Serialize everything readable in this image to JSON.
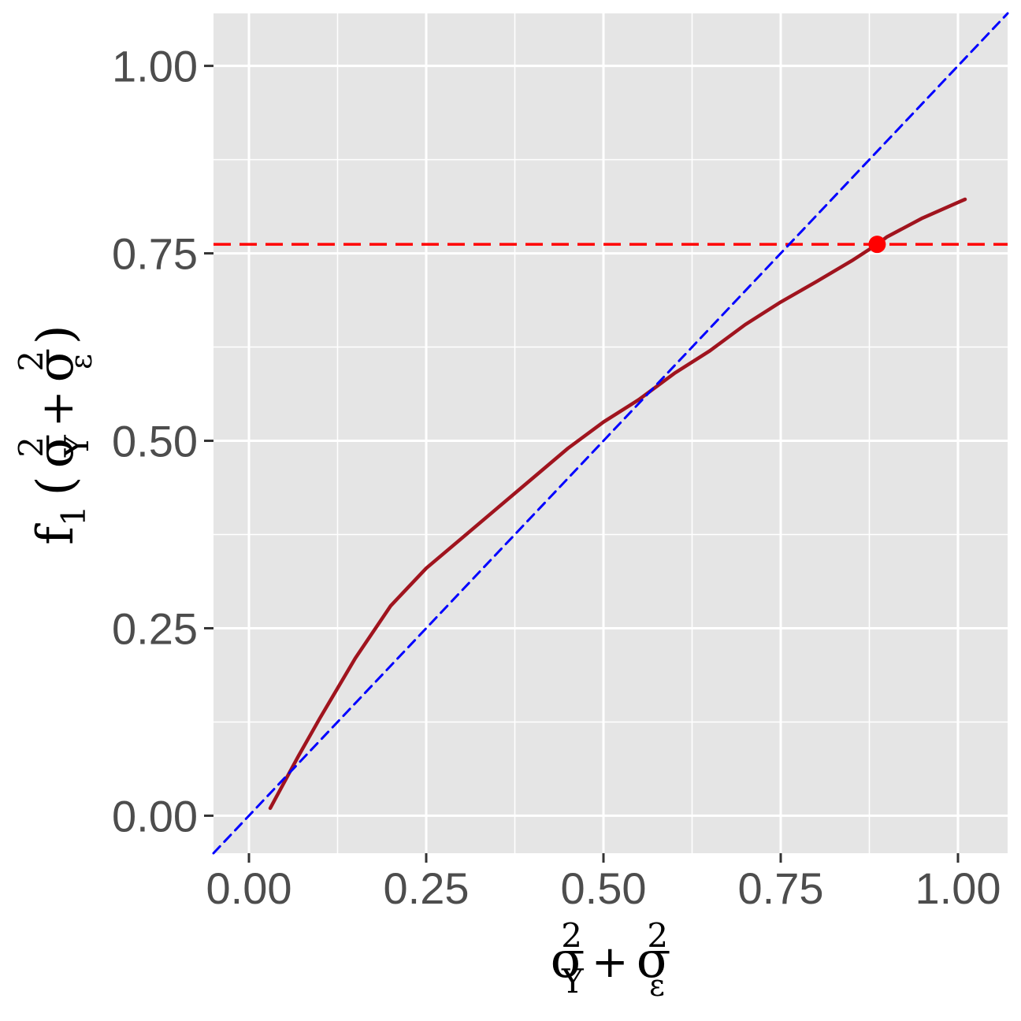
{
  "chart_data": {
    "type": "line",
    "xlim": [
      -0.05,
      1.07
    ],
    "ylim": [
      -0.05,
      1.07
    ],
    "x_ticks": [
      0.0,
      0.25,
      0.5,
      0.75,
      1.0
    ],
    "y_ticks": [
      0.0,
      0.25,
      0.5,
      0.75,
      1.0
    ],
    "x_tick_labels": [
      "0.00",
      "0.25",
      "0.50",
      "0.75",
      "1.00"
    ],
    "y_tick_labels": [
      "0.00",
      "0.25",
      "0.50",
      "0.75",
      "1.00"
    ],
    "xlabel": {
      "sigma": "σ",
      "sub_y": "Y",
      "sup": "2",
      "plus": "+",
      "sub_eps": "ε"
    },
    "ylabel": {
      "f": "f",
      "f_sub": "1",
      "open": "(",
      "close": ")",
      "sigma": "σ",
      "sub_y": "Y",
      "sup": "2",
      "plus": "+",
      "sub_eps": "ε"
    },
    "grid": true,
    "background": "#e5e5e5",
    "series": [
      {
        "style": "solid",
        "color": "#a0141e",
        "x": [
          0.03,
          0.07,
          0.1,
          0.15,
          0.2,
          0.25,
          0.3,
          0.35,
          0.4,
          0.45,
          0.5,
          0.55,
          0.6,
          0.65,
          0.7,
          0.75,
          0.8,
          0.85,
          0.886,
          0.9,
          0.95,
          1.0,
          1.01
        ],
        "y": [
          0.01,
          0.08,
          0.13,
          0.21,
          0.28,
          0.33,
          0.37,
          0.41,
          0.45,
          0.49,
          0.525,
          0.555,
          0.59,
          0.62,
          0.655,
          0.685,
          0.712,
          0.74,
          0.762,
          0.772,
          0.797,
          0.818,
          0.822
        ]
      },
      {
        "style": "dashed",
        "color": "#0000ff",
        "x": [
          -0.05,
          1.07
        ],
        "y": [
          -0.05,
          1.07
        ]
      }
    ],
    "hline": {
      "y": 0.762,
      "color": "#ff0000",
      "style": "dashed"
    },
    "point": {
      "x": 0.886,
      "y": 0.762,
      "color": "#ff0000"
    }
  }
}
